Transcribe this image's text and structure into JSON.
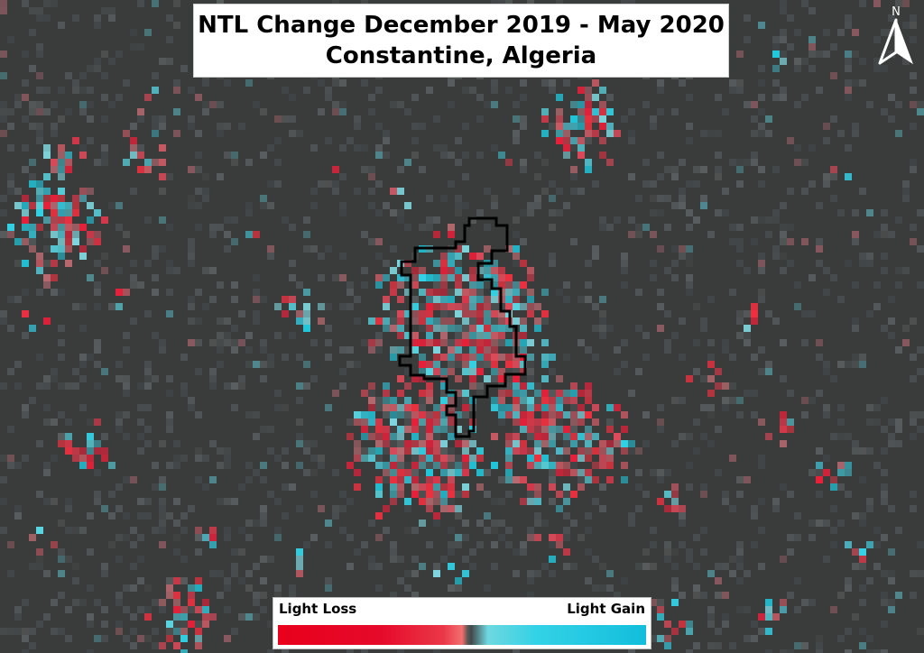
{
  "map": {
    "title_line1": "NTL Change December 2019 - May 2020",
    "title_line2": "Constantine, Algeria",
    "north_label": "N",
    "background_color": "#3a3c3c",
    "boundary_color": "#000000"
  },
  "legend": {
    "low_label": "Light Loss",
    "high_label": "Light Gain",
    "ramp_colors": [
      "#e8001c",
      "#f07070",
      "#3a3c3c",
      "#6ed8e0",
      "#12bedc"
    ]
  }
}
